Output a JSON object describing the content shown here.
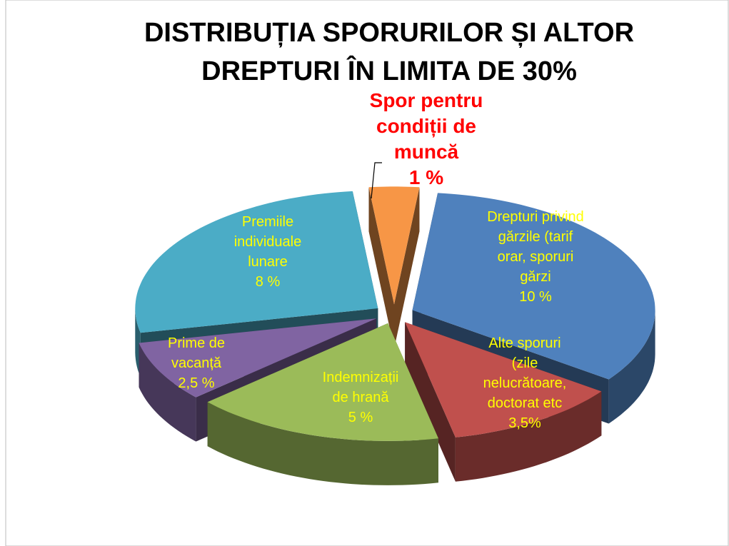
{
  "chart_data": {
    "type": "pie3d",
    "title": "DISTRIBUȚIA SPORURILOR ȘI ALTOR\nDREPTURI ÎN LIMITA DE 30%",
    "categories": [
      "Drepturi privind\ngărzile (tarif\norar, sporuri\ngărzi",
      "Alte sporuri\n(zile\nnelucrătoare,\ndoctorat etc",
      "Indemnizații\nde hrană",
      "Prime de\nvacanță",
      "Premiile\nindividuale\nlunare",
      "Spor pentru\ncondiții de\nmuncă"
    ],
    "values": [
      10,
      3.5,
      5,
      2.5,
      8,
      1
    ],
    "value_labels": [
      "10 %",
      "3,5%",
      "5 %",
      "2,5 %",
      "8 %",
      "1 %"
    ],
    "colors": [
      "#4f81bd",
      "#c0504d",
      "#9bbb59",
      "#8064a2",
      "#4bacc6",
      "#f79646"
    ],
    "label_colors": [
      "#ffff00",
      "#ffff00",
      "#ffff00",
      "#ffff00",
      "#ffff00",
      "#ff0000"
    ]
  }
}
